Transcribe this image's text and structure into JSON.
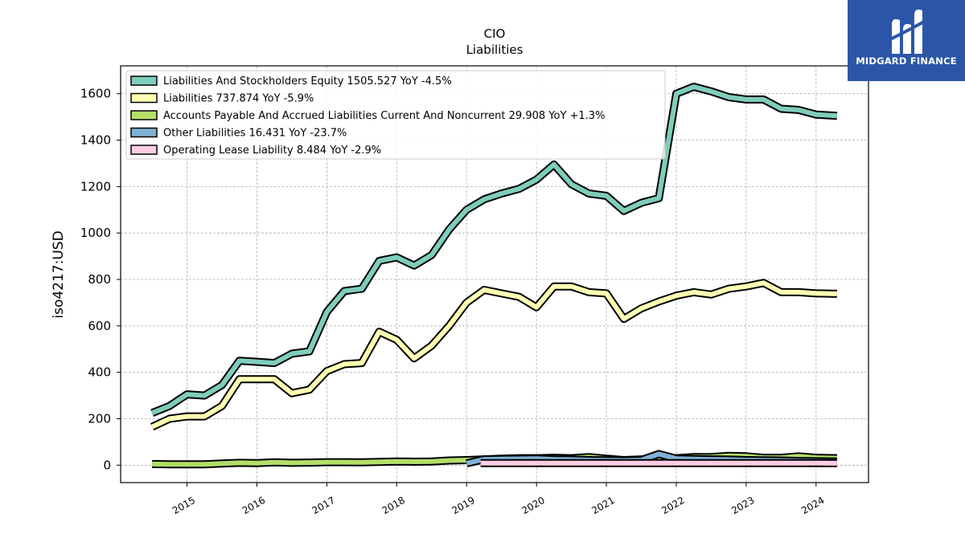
{
  "brand": {
    "name": "MIDGARD FINANCE",
    "background": "#2b56a8"
  },
  "chart_data": {
    "type": "line",
    "title": "CIO",
    "subtitle": "Liabilities",
    "ylabel": "iso4217:USD",
    "ylim": [
      -75,
      1720
    ],
    "xlim": [
      2014.05,
      2024.75
    ],
    "yticks": [
      0,
      200,
      400,
      600,
      800,
      1000,
      1200,
      1400,
      1600
    ],
    "xticks": [
      2015,
      2016,
      2017,
      2018,
      2019,
      2020,
      2021,
      2022,
      2023,
      2024
    ],
    "grid": true,
    "legend_position": "top-left",
    "series": [
      {
        "name": "Liabilities And Stockholders Equity",
        "legend": "Liabilities And Stockholders Equity  1505.527 YoY -4.5%",
        "color": "#7fcdbb",
        "x": [
          2014.5,
          2014.75,
          2015.0,
          2015.25,
          2015.5,
          2015.75,
          2016.0,
          2016.25,
          2016.5,
          2016.75,
          2017.0,
          2017.25,
          2017.5,
          2017.75,
          2018.0,
          2018.25,
          2018.5,
          2018.75,
          2019.0,
          2019.25,
          2019.5,
          2019.75,
          2020.0,
          2020.25,
          2020.5,
          2020.75,
          2021.0,
          2021.25,
          2021.5,
          2021.75,
          2022.0,
          2022.25,
          2022.5,
          2022.75,
          2023.0,
          2023.25,
          2023.5,
          2023.75,
          2024.0,
          2024.3
        ],
        "values": [
          225,
          255,
          305,
          300,
          345,
          450,
          445,
          440,
          480,
          490,
          660,
          750,
          760,
          880,
          895,
          860,
          905,
          1015,
          1100,
          1145,
          1170,
          1190,
          1230,
          1295,
          1210,
          1170,
          1160,
          1095,
          1130,
          1150,
          1600,
          1630,
          1610,
          1585,
          1575,
          1575,
          1535,
          1530,
          1510,
          1505
        ]
      },
      {
        "name": "Liabilities",
        "legend": "Liabilities  737.874 YoY -5.9%",
        "color": "#ffffb3",
        "x": [
          2014.5,
          2014.75,
          2015.0,
          2015.25,
          2015.5,
          2015.75,
          2016.0,
          2016.25,
          2016.5,
          2016.75,
          2017.0,
          2017.25,
          2017.5,
          2017.75,
          2018.0,
          2018.25,
          2018.5,
          2018.75,
          2019.0,
          2019.25,
          2019.5,
          2019.75,
          2020.0,
          2020.25,
          2020.5,
          2020.75,
          2021.0,
          2021.25,
          2021.5,
          2021.75,
          2022.0,
          2022.25,
          2022.5,
          2022.75,
          2023.0,
          2023.25,
          2023.5,
          2023.75,
          2024.0,
          2024.3
        ],
        "values": [
          165,
          200,
          210,
          210,
          255,
          370,
          370,
          370,
          310,
          325,
          405,
          435,
          440,
          575,
          540,
          460,
          515,
          600,
          700,
          755,
          740,
          725,
          680,
          770,
          770,
          745,
          740,
          630,
          675,
          705,
          730,
          745,
          735,
          760,
          770,
          785,
          745,
          745,
          740,
          738
        ]
      },
      {
        "name": "Accounts Payable And Accrued Liabilities Current And Noncurrent",
        "legend": "Accounts Payable And Accrued Liabilities Current And Noncurrent  29.908 YoY +1.3%",
        "color": "#b3de69",
        "x": [
          2014.5,
          2014.75,
          2015.0,
          2015.25,
          2015.5,
          2015.75,
          2016.0,
          2016.25,
          2016.5,
          2016.75,
          2017.0,
          2017.25,
          2017.5,
          2017.75,
          2018.0,
          2018.25,
          2018.5,
          2018.75,
          2019.0,
          2019.25,
          2019.5,
          2019.75,
          2020.0,
          2020.25,
          2020.5,
          2020.75,
          2021.0,
          2021.25,
          2021.5,
          2021.75,
          2022.0,
          2022.25,
          2022.5,
          2022.75,
          2023.0,
          2023.25,
          2023.5,
          2023.75,
          2024.0,
          2024.3
        ],
        "values": [
          5,
          4,
          4,
          4,
          7,
          10,
          9,
          12,
          10,
          11,
          13,
          13,
          12,
          14,
          16,
          15,
          16,
          20,
          22,
          25,
          28,
          30,
          30,
          32,
          30,
          35,
          28,
          22,
          25,
          25,
          30,
          35,
          35,
          40,
          38,
          32,
          32,
          38,
          32,
          30
        ]
      },
      {
        "name": "Other Liabilities",
        "legend": "Other Liabilities  16.431 YoY -23.7%",
        "color": "#80b1d3",
        "x": [
          2019.0,
          2019.25,
          2019.5,
          2019.75,
          2020.0,
          2020.25,
          2020.5,
          2020.75,
          2021.0,
          2021.25,
          2021.5,
          2021.75,
          2022.0,
          2022.25,
          2022.5,
          2022.75,
          2023.0,
          2023.25,
          2023.5,
          2023.75,
          2024.0,
          2024.3
        ],
        "values": [
          8,
          25,
          26,
          27,
          28,
          25,
          24,
          22,
          21,
          20,
          22,
          48,
          28,
          26,
          25,
          24,
          22,
          21,
          20,
          18,
          17,
          16
        ]
      },
      {
        "name": "Operating Lease Liability",
        "legend": "Operating Lease Liability  8.484 YoY -2.9%",
        "color": "#fccde5",
        "x": [
          2019.2,
          2019.5,
          2019.75,
          2020.0,
          2020.25,
          2020.5,
          2020.75,
          2021.0,
          2021.25,
          2021.5,
          2021.75,
          2022.0,
          2022.25,
          2022.5,
          2022.75,
          2023.0,
          2023.25,
          2023.5,
          2023.75,
          2024.0,
          2024.3
        ],
        "values": [
          9,
          9,
          9,
          9,
          9,
          9,
          9,
          9,
          9,
          9,
          9,
          9,
          9,
          9,
          9,
          9,
          9,
          9,
          9,
          9,
          8.5
        ]
      }
    ]
  }
}
